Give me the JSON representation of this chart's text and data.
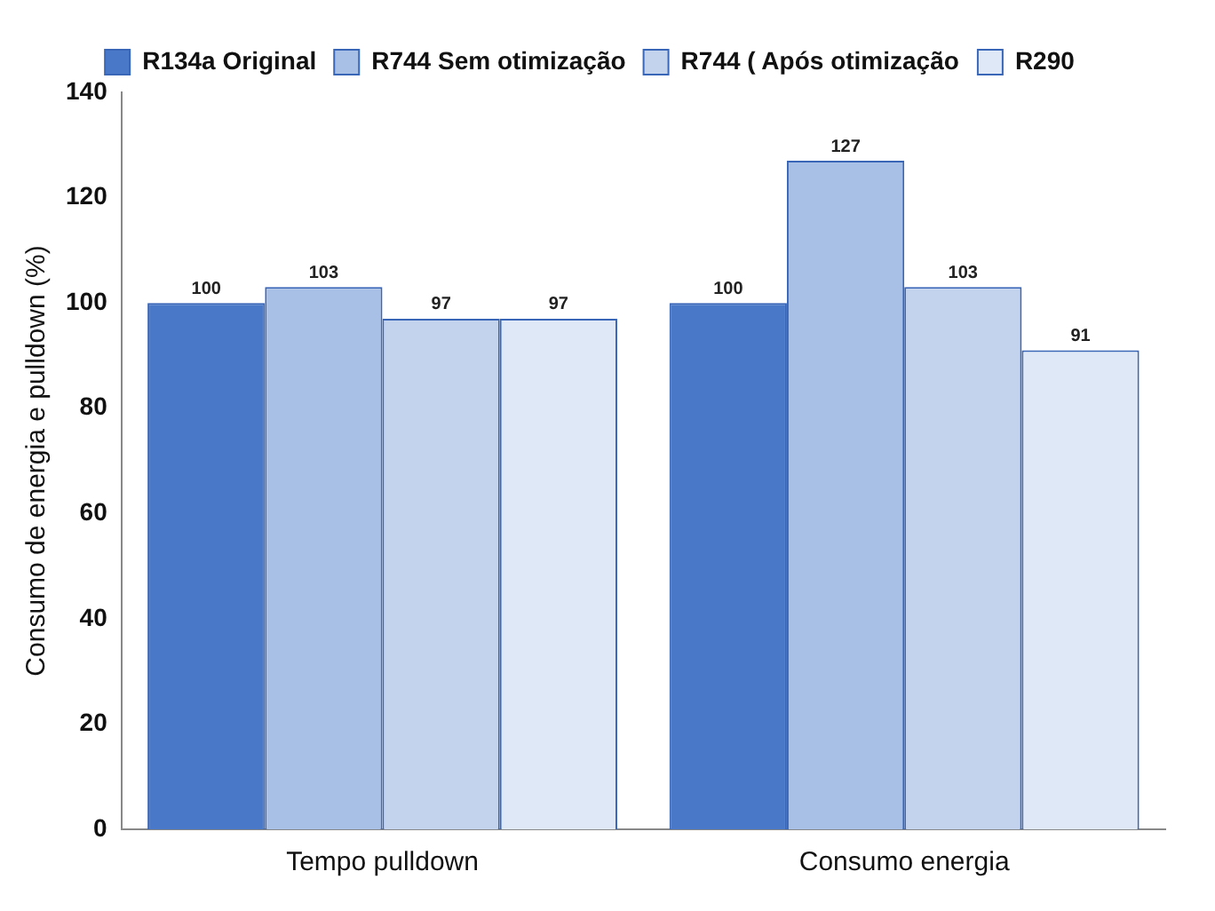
{
  "chart_data": {
    "type": "bar",
    "ylabel": "Consumo de energia e pulldown (%)",
    "categories": [
      "Tempo pulldown",
      "Consumo energia"
    ],
    "series": [
      {
        "name": "R134a Original",
        "color": "#4a78c8",
        "values": [
          100,
          100
        ]
      },
      {
        "name": "R744 Sem otimização",
        "color": "#a9c0e6",
        "values": [
          103,
          127
        ]
      },
      {
        "name": "R744 ( Após otimização",
        "color": "#c3d3ee",
        "values": [
          97,
          103
        ]
      },
      {
        "name": "R290",
        "color": "#dfe8f6",
        "values": [
          97,
          91
        ]
      }
    ],
    "ylim": [
      0,
      140
    ],
    "yticks": [
      0,
      20,
      40,
      60,
      80,
      100,
      120,
      140
    ],
    "grid": false,
    "legend": "top",
    "data_labels": true
  }
}
